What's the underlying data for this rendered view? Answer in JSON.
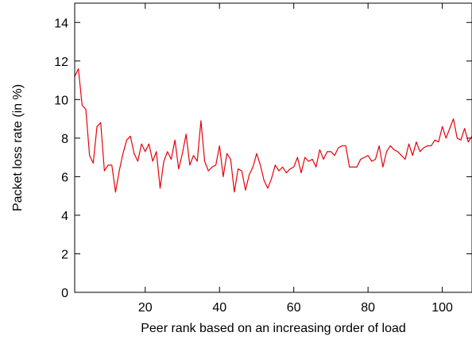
{
  "chart_data": {
    "type": "line",
    "xlabel": "Peer rank based on an increasing order of load",
    "ylabel": "Packet loss rate (in %)",
    "xlim": [
      1,
      108
    ],
    "ylim": [
      0,
      15
    ],
    "x_ticks": [
      20,
      40,
      60,
      80,
      100
    ],
    "y_ticks": [
      0,
      2,
      4,
      6,
      8,
      10,
      12,
      14
    ],
    "grid": false,
    "legend": "none",
    "series": [
      {
        "color": "#e8000b",
        "x": [
          1,
          2,
          3,
          4,
          5,
          6,
          7,
          8,
          9,
          10,
          11,
          12,
          13,
          14,
          15,
          16,
          17,
          18,
          19,
          20,
          21,
          22,
          23,
          24,
          25,
          26,
          27,
          28,
          29,
          30,
          31,
          32,
          33,
          34,
          35,
          36,
          37,
          38,
          39,
          40,
          41,
          42,
          43,
          44,
          45,
          46,
          47,
          48,
          49,
          50,
          51,
          52,
          53,
          54,
          55,
          56,
          57,
          58,
          59,
          60,
          61,
          62,
          63,
          64,
          65,
          66,
          67,
          68,
          69,
          70,
          71,
          72,
          73,
          74,
          75,
          76,
          77,
          78,
          79,
          80,
          81,
          82,
          83,
          84,
          85,
          86,
          87,
          88,
          89,
          90,
          91,
          92,
          93,
          94,
          95,
          96,
          97,
          98,
          99,
          100,
          101,
          102,
          103,
          104,
          105,
          106,
          107,
          108
        ],
        "y": [
          11.2,
          11.6,
          9.7,
          9.5,
          7.1,
          6.7,
          8.6,
          8.8,
          6.3,
          6.6,
          6.6,
          5.2,
          6.3,
          7.2,
          7.9,
          8.1,
          7.2,
          6.8,
          7.7,
          7.3,
          7.7,
          6.8,
          7.3,
          5.4,
          6.8,
          7.3,
          6.9,
          7.9,
          6.4,
          7.2,
          8.2,
          6.6,
          7.1,
          6.8,
          8.9,
          6.8,
          6.3,
          6.5,
          6.6,
          7.6,
          6.0,
          7.2,
          6.9,
          5.2,
          6.4,
          6.3,
          5.3,
          6.1,
          6.5,
          7.2,
          6.6,
          5.8,
          5.4,
          5.9,
          6.6,
          6.3,
          6.5,
          6.2,
          6.4,
          6.5,
          7.0,
          6.2,
          7.0,
          6.8,
          6.9,
          6.5,
          7.4,
          6.9,
          7.3,
          7.3,
          7.1,
          7.5,
          7.6,
          7.6,
          6.5,
          6.5,
          6.5,
          6.9,
          7.0,
          7.1,
          6.8,
          6.9,
          7.6,
          6.5,
          7.3,
          7.6,
          7.4,
          7.3,
          7.1,
          6.9,
          7.7,
          7.1,
          7.8,
          7.3,
          7.5,
          7.6,
          7.6,
          7.9,
          7.8,
          8.6,
          8.0,
          8.5,
          9.0,
          8.0,
          7.9,
          8.5,
          7.8,
          8.1
        ]
      }
    ]
  }
}
